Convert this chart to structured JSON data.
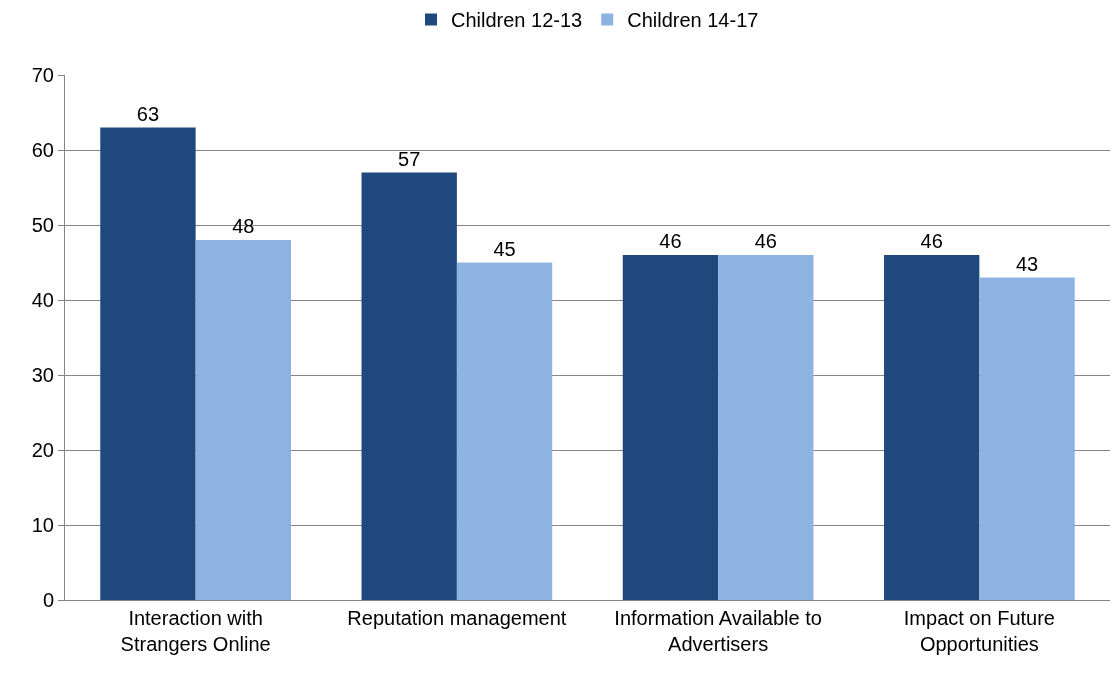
{
  "chart_data": {
    "type": "bar",
    "categories": [
      "Interaction with Strangers Online",
      "Reputation management",
      "Information Available to Advertisers",
      "Impact on Future Opportunities"
    ],
    "series": [
      {
        "name": "Children 12-13",
        "color": "#1f497d",
        "values": [
          63,
          57,
          46,
          46
        ]
      },
      {
        "name": "Children 14-17",
        "color": "#8db3e2",
        "values": [
          48,
          45,
          46,
          43
        ]
      }
    ],
    "ylim": [
      0,
      70
    ],
    "yticks": [
      0,
      10,
      20,
      30,
      40,
      50,
      60,
      70
    ],
    "grid": "y",
    "legend": "top",
    "data_labels": true
  }
}
